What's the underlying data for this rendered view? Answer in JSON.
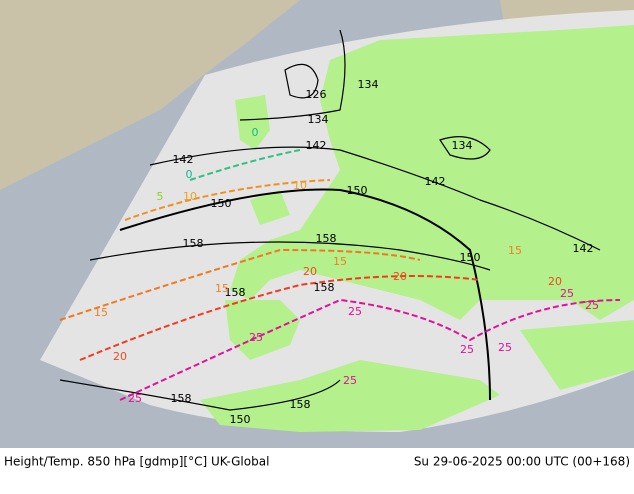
{
  "footer": {
    "left": "Height/Temp. 850 hPa [gdmp][°C] UK-Global",
    "right": "Su 29-06-2025 00:00 UTC (00+168)"
  },
  "map": {
    "labels": [
      "126",
      "134",
      "134",
      "134",
      "142",
      "142",
      "142",
      "142",
      "150",
      "150",
      "150",
      "158",
      "158",
      "158",
      "158",
      "158",
      "158",
      "150",
      "0",
      "0",
      "5",
      "10",
      "10",
      "15",
      "15",
      "15",
      "15",
      "20",
      "20",
      "20",
      "20",
      "25",
      "25",
      "25",
      "25",
      "25",
      "25",
      "25",
      "25"
    ]
  }
}
